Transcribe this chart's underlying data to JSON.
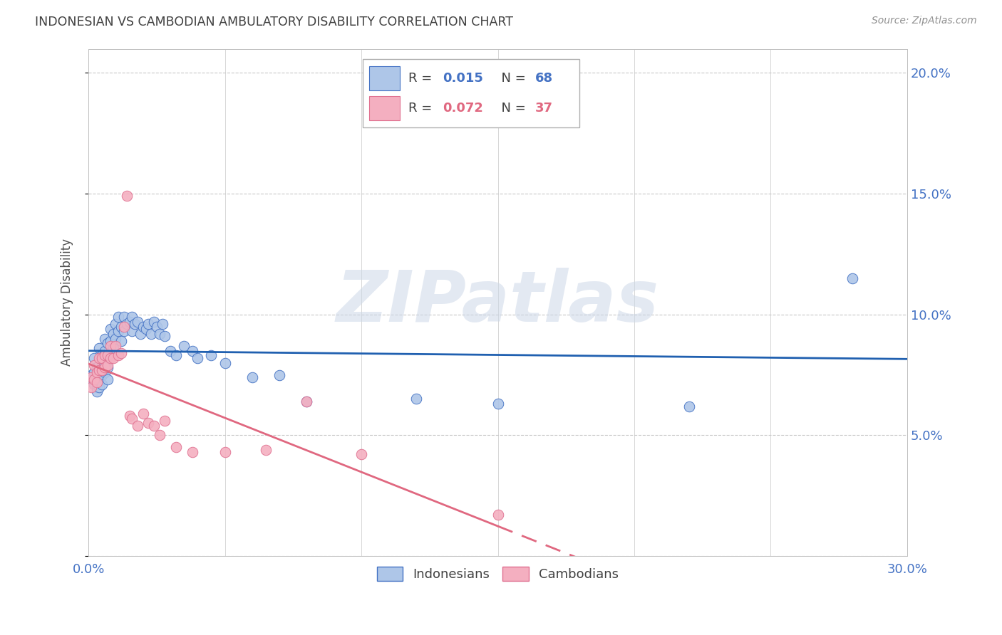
{
  "title": "INDONESIAN VS CAMBODIAN AMBULATORY DISABILITY CORRELATION CHART",
  "source": "Source: ZipAtlas.com",
  "ylabel": "Ambulatory Disability",
  "xlim": [
    0.0,
    0.3
  ],
  "ylim": [
    0.0,
    0.21
  ],
  "xtick_positions": [
    0.0,
    0.05,
    0.1,
    0.15,
    0.2,
    0.25,
    0.3
  ],
  "xtick_labels": [
    "0.0%",
    "",
    "",
    "",
    "",
    "",
    "30.0%"
  ],
  "ytick_positions": [
    0.0,
    0.05,
    0.1,
    0.15,
    0.2
  ],
  "ytick_labels": [
    "",
    "5.0%",
    "10.0%",
    "15.0%",
    "20.0%"
  ],
  "axis_color": "#4472c4",
  "grid_color": "#c8c8c8",
  "title_color": "#404040",
  "indonesian_face_color": "#aec6e8",
  "indonesian_edge_color": "#4472c4",
  "cambodian_face_color": "#f4afc0",
  "cambodian_edge_color": "#e07090",
  "indonesian_line_color": "#2060b0",
  "cambodian_line_color": "#e06880",
  "legend_R_color_ind": "#4472c4",
  "legend_N_color_ind": "#4472c4",
  "legend_R_color_cam": "#e06880",
  "legend_N_color_cam": "#e06880",
  "watermark_text": "ZIPatlas",
  "indonesian_x": [
    0.001,
    0.001,
    0.002,
    0.002,
    0.002,
    0.003,
    0.003,
    0.003,
    0.003,
    0.004,
    0.004,
    0.004,
    0.004,
    0.005,
    0.005,
    0.005,
    0.005,
    0.006,
    0.006,
    0.006,
    0.006,
    0.007,
    0.007,
    0.007,
    0.007,
    0.008,
    0.008,
    0.008,
    0.009,
    0.009,
    0.01,
    0.01,
    0.011,
    0.011,
    0.012,
    0.012,
    0.013,
    0.013,
    0.014,
    0.015,
    0.016,
    0.016,
    0.017,
    0.018,
    0.019,
    0.02,
    0.021,
    0.022,
    0.023,
    0.024,
    0.025,
    0.026,
    0.027,
    0.028,
    0.03,
    0.032,
    0.035,
    0.038,
    0.04,
    0.045,
    0.05,
    0.06,
    0.07,
    0.08,
    0.12,
    0.15,
    0.22,
    0.28
  ],
  "indonesian_y": [
    0.075,
    0.073,
    0.082,
    0.076,
    0.071,
    0.078,
    0.074,
    0.07,
    0.068,
    0.079,
    0.074,
    0.07,
    0.086,
    0.083,
    0.079,
    0.075,
    0.071,
    0.09,
    0.085,
    0.081,
    0.076,
    0.088,
    0.083,
    0.078,
    0.073,
    0.094,
    0.089,
    0.083,
    0.092,
    0.086,
    0.096,
    0.09,
    0.099,
    0.093,
    0.095,
    0.089,
    0.099,
    0.093,
    0.096,
    0.097,
    0.099,
    0.093,
    0.096,
    0.097,
    0.092,
    0.095,
    0.094,
    0.096,
    0.092,
    0.097,
    0.095,
    0.092,
    0.096,
    0.091,
    0.085,
    0.083,
    0.087,
    0.085,
    0.082,
    0.083,
    0.08,
    0.074,
    0.075,
    0.064,
    0.065,
    0.063,
    0.062,
    0.115
  ],
  "cambodian_x": [
    0.001,
    0.001,
    0.002,
    0.002,
    0.003,
    0.003,
    0.004,
    0.004,
    0.005,
    0.005,
    0.006,
    0.006,
    0.007,
    0.007,
    0.008,
    0.008,
    0.009,
    0.01,
    0.011,
    0.012,
    0.013,
    0.014,
    0.015,
    0.016,
    0.018,
    0.02,
    0.022,
    0.024,
    0.026,
    0.028,
    0.032,
    0.038,
    0.05,
    0.065,
    0.08,
    0.1,
    0.15
  ],
  "cambodian_y": [
    0.074,
    0.07,
    0.079,
    0.073,
    0.076,
    0.072,
    0.082,
    0.077,
    0.082,
    0.077,
    0.083,
    0.078,
    0.083,
    0.079,
    0.087,
    0.082,
    0.082,
    0.087,
    0.083,
    0.084,
    0.095,
    0.149,
    0.058,
    0.057,
    0.054,
    0.059,
    0.055,
    0.054,
    0.05,
    0.056,
    0.045,
    0.043,
    0.043,
    0.044,
    0.064,
    0.042,
    0.017
  ]
}
